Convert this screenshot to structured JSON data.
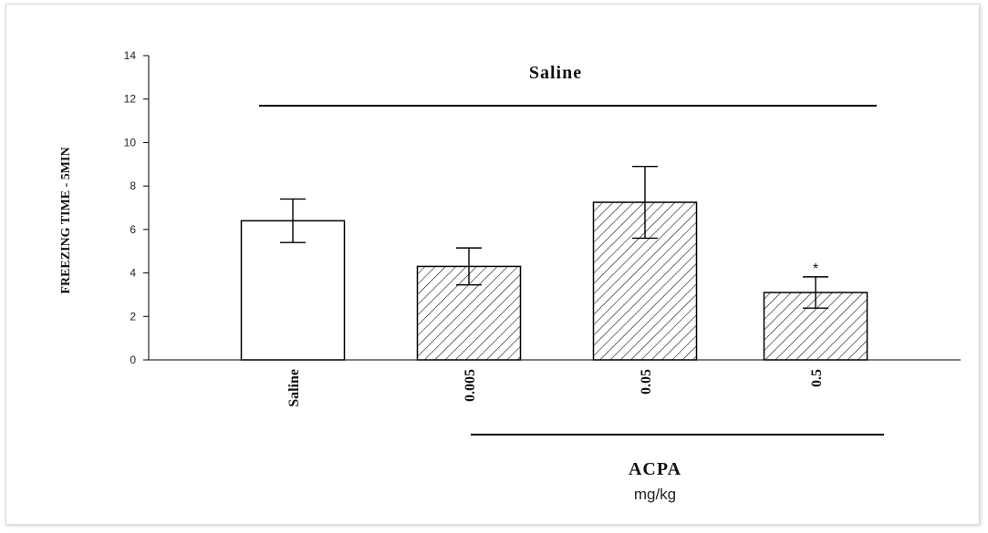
{
  "chart_data": {
    "type": "bar",
    "categories": [
      "Saline",
      "0.005",
      "0.05",
      "0.5"
    ],
    "values": [
      6.4,
      4.3,
      7.25,
      3.1
    ],
    "errors": [
      1.0,
      0.85,
      1.65,
      0.72
    ],
    "patterns": [
      "none",
      "hatch",
      "hatch",
      "hatch"
    ],
    "significance": [
      "",
      "",
      "",
      "*"
    ],
    "ylabel": "FREEZING TIME - 5MIN",
    "ylim": [
      0,
      14
    ],
    "yticks": [
      0,
      2,
      4,
      6,
      8,
      10,
      12,
      14
    ],
    "grid": false,
    "group_top_label": "Saline",
    "group_bottom_label": "ACPA",
    "group_bottom_unit": "mg/kg",
    "colors": {
      "bar_fill": "#ffffff",
      "bar_stroke": "#000000",
      "hatch": "#000000"
    }
  }
}
